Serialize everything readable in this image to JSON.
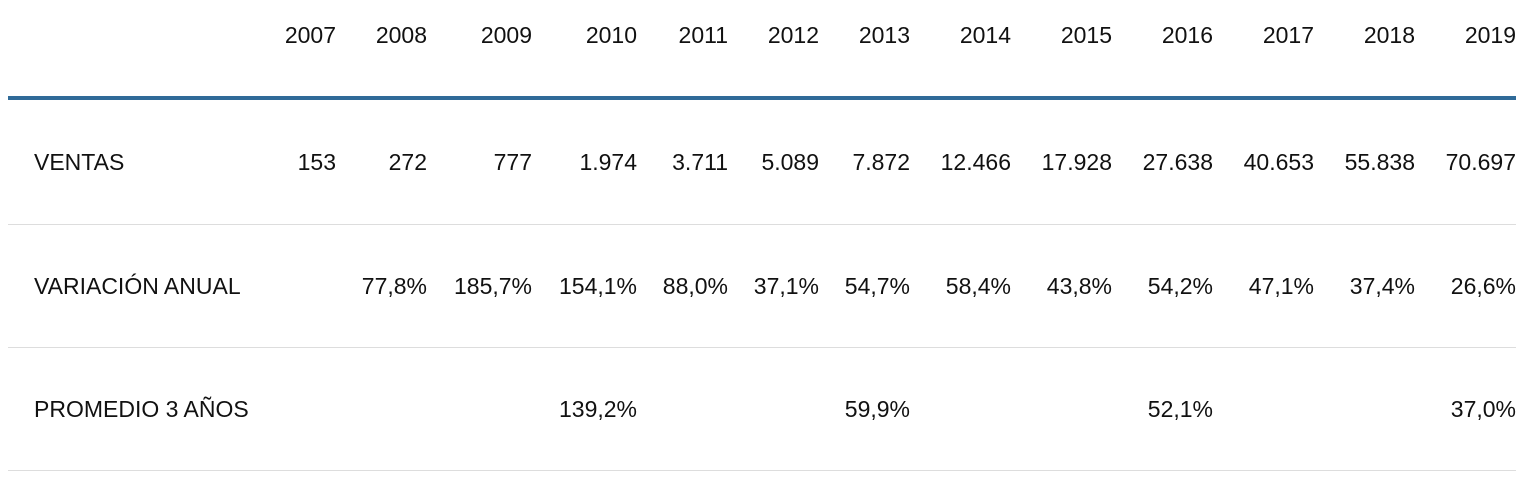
{
  "table": {
    "years": [
      "2007",
      "2008",
      "2009",
      "2010",
      "2011",
      "2012",
      "2013",
      "2014",
      "2015",
      "2016",
      "2017",
      "2018",
      "2019"
    ],
    "rows": [
      {
        "label": "VENTAS",
        "values": [
          "153",
          "272",
          "777",
          "1.974",
          "3.711",
          "5.089",
          "7.872",
          "12.466",
          "17.928",
          "27.638",
          "40.653",
          "55.838",
          "70.697"
        ]
      },
      {
        "label": "VARIACIÓN ANUAL",
        "values": [
          "",
          "77,8%",
          "185,7%",
          "154,1%",
          "88,0%",
          "37,1%",
          "54,7%",
          "58,4%",
          "43,8%",
          "54,2%",
          "47,1%",
          "37,4%",
          "26,6%"
        ]
      },
      {
        "label": "PROMEDIO 3 AÑOS",
        "values": [
          "",
          "",
          "",
          "139,2%",
          "",
          "",
          "59,9%",
          "",
          "",
          "52,1%",
          "",
          "",
          "37,0%"
        ]
      }
    ]
  },
  "colors": {
    "header_rule": "#2f6a98",
    "row_divider": "#dddddd",
    "text": "#111111"
  }
}
